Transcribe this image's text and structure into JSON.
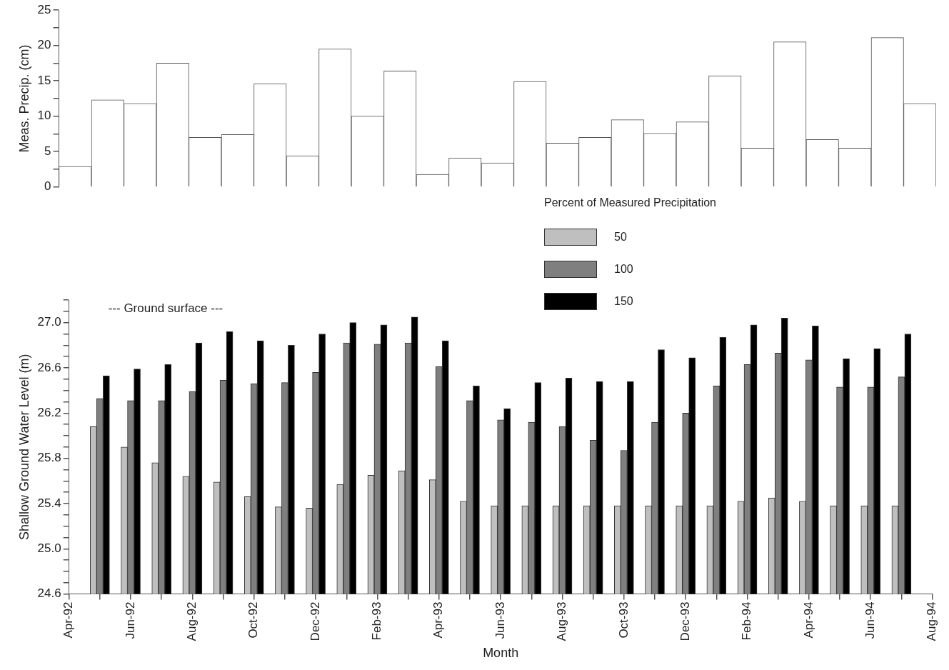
{
  "chart_data": [
    {
      "type": "bar",
      "ylabel": "Meas. Precip. (cm)",
      "categories": [
        null,
        null,
        null,
        null,
        null,
        null,
        null,
        null,
        null,
        null,
        null,
        null,
        null,
        null,
        null,
        null,
        null,
        null,
        null,
        null,
        null,
        null,
        null,
        null,
        null,
        null,
        null
      ],
      "values": [
        2.9,
        12.3,
        11.8,
        17.5,
        7.0,
        7.4,
        14.6,
        4.4,
        19.5,
        10.0,
        16.4,
        1.8,
        4.1,
        3.4,
        14.9,
        6.2,
        7.0,
        9.5,
        7.6,
        9.2,
        15.7,
        5.5,
        20.5,
        6.7,
        5.5,
        21.1,
        11.8
      ],
      "color": "#ffffff",
      "ylim": [
        0,
        25
      ],
      "yticks": [
        0,
        {
          "value": 2.5,
          "label": null
        },
        5,
        {
          "value": 7.5,
          "label": null
        },
        10,
        {
          "value": 12.5,
          "label": null
        },
        15,
        {
          "value": 17.5,
          "label": null
        },
        20,
        {
          "value": 22.5,
          "label": null
        },
        25
      ],
      "tick_labels": "y",
      "grid": false,
      "legend": false
    },
    {
      "type": "bar",
      "xlabel": "Month",
      "ylabel": "Shallow Ground Water Level (m)",
      "legend_title": "Percent of Measured Precipitation",
      "legend": "top",
      "grid": false,
      "annotations": [
        "--- Ground surface ---"
      ],
      "x": [
        "1992-05",
        "1992-06",
        "1992-07",
        "1992-08",
        "1992-09",
        "1992-10",
        "1992-11",
        "1992-12",
        "1993-01",
        "1993-02",
        "1993-03",
        "1993-04",
        "1993-05",
        "1993-06",
        "1993-07",
        "1993-08",
        "1993-09",
        "1993-10",
        "1993-11",
        "1993-12",
        "1994-01",
        "1994-02",
        "1994-03",
        "1994-04",
        "1994-05",
        "1994-06",
        "1994-07"
      ],
      "series": [
        {
          "name": "50",
          "color": "#bfbfbf",
          "values": [
            26.08,
            25.9,
            25.76,
            25.64,
            25.59,
            25.46,
            25.37,
            25.36,
            25.57,
            25.65,
            25.69,
            25.61,
            25.42,
            25.38,
            25.38,
            25.38,
            25.38,
            25.38,
            25.38,
            25.38,
            25.38,
            25.42,
            25.45,
            25.42,
            25.38,
            25.38,
            25.38
          ]
        },
        {
          "name": "100",
          "color": "#7f7f7f",
          "values": [
            26.33,
            26.31,
            26.31,
            26.39,
            26.49,
            26.46,
            26.47,
            26.56,
            26.82,
            26.81,
            26.82,
            26.61,
            26.31,
            26.14,
            26.12,
            26.08,
            25.96,
            25.87,
            26.12,
            26.2,
            26.44,
            26.63,
            26.73,
            26.67,
            26.43,
            26.43,
            26.52
          ]
        },
        {
          "name": "150",
          "color": "#000000",
          "values": [
            26.53,
            26.59,
            26.63,
            26.82,
            26.92,
            26.84,
            26.8,
            26.9,
            27.0,
            26.98,
            27.05,
            26.84,
            26.44,
            26.24,
            26.47,
            26.51,
            26.48,
            26.48,
            26.76,
            26.69,
            26.87,
            26.98,
            27.04,
            26.97,
            26.68,
            26.77,
            26.9
          ]
        }
      ],
      "xlim": [
        "1992-04",
        "1994-08"
      ],
      "xticks": [
        {
          "value": "1992-04",
          "label": "Apr-92"
        },
        {
          "value": "1992-05",
          "label": null
        },
        {
          "value": "1992-06",
          "label": "Jun-92"
        },
        {
          "value": "1992-07",
          "label": null
        },
        {
          "value": "1992-08",
          "label": "Aug-92"
        },
        {
          "value": "1992-09",
          "label": null
        },
        {
          "value": "1992-10",
          "label": "Oct-92"
        },
        {
          "value": "1992-11",
          "label": null
        },
        {
          "value": "1992-12",
          "label": "Dec-92"
        },
        {
          "value": "1993-01",
          "label": null
        },
        {
          "value": "1993-02",
          "label": "Feb-93"
        },
        {
          "value": "1993-03",
          "label": null
        },
        {
          "value": "1993-04",
          "label": "Apr-93"
        },
        {
          "value": "1993-05",
          "label": null
        },
        {
          "value": "1993-06",
          "label": "Jun-93"
        },
        {
          "value": "1993-07",
          "label": null
        },
        {
          "value": "1993-08",
          "label": "Aug-93"
        },
        {
          "value": "1993-09",
          "label": null
        },
        {
          "value": "1993-10",
          "label": "Oct-93"
        },
        {
          "value": "1993-11",
          "label": null
        },
        {
          "value": "1993-12",
          "label": "Dec-93"
        },
        {
          "value": "1994-01",
          "label": null
        },
        {
          "value": "1994-02",
          "label": "Feb-94"
        },
        {
          "value": "1994-03",
          "label": null
        },
        {
          "value": "1994-04",
          "label": "Apr-94"
        },
        {
          "value": "1994-05",
          "label": null
        },
        {
          "value": "1994-06",
          "label": "Jun-94"
        },
        {
          "value": "1994-07",
          "label": null
        },
        {
          "value": "1994-08",
          "label": "Aug-94"
        }
      ],
      "ylim": [
        24.6,
        27.2
      ],
      "yticks": [
        24.6,
        {
          "value": 24.7,
          "label": null
        },
        {
          "value": 24.8,
          "label": null
        },
        {
          "value": 24.9,
          "label": null
        },
        {
          "value": 25,
          "label": "25.0"
        },
        {
          "value": 25.1,
          "label": null
        },
        {
          "value": 25.2,
          "label": null
        },
        {
          "value": 25.3,
          "label": null
        },
        25.4,
        {
          "value": 25.5,
          "label": null
        },
        {
          "value": 25.6,
          "label": null
        },
        {
          "value": 25.7,
          "label": null
        },
        25.8,
        {
          "value": 25.9,
          "label": null
        },
        {
          "value": 26,
          "label": null
        },
        {
          "value": 26.1,
          "label": null
        },
        26.2,
        {
          "value": 26.3,
          "label": null
        },
        {
          "value": 26.4,
          "label": null
        },
        {
          "value": 26.5,
          "label": null
        },
        26.6,
        {
          "value": 26.7,
          "label": null
        },
        {
          "value": 26.8,
          "label": null
        },
        {
          "value": 26.9,
          "label": null
        },
        {
          "value": 27,
          "label": "27.0"
        },
        {
          "value": 27.1,
          "label": null
        },
        {
          "value": 27.2,
          "label": null
        }
      ]
    }
  ]
}
